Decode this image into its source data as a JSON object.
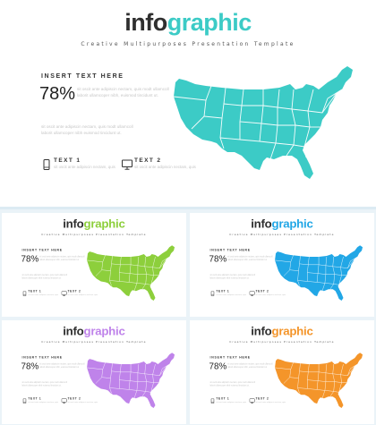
{
  "slides": [
    {
      "accent": "#3ccbc6",
      "title_a": "info",
      "title_b": "graphic"
    },
    {
      "accent": "#8dcf3c",
      "title_a": "info",
      "title_b": "graphic"
    },
    {
      "accent": "#22a7e6",
      "title_a": "info",
      "title_b": "graphic"
    },
    {
      "accent": "#bf83ea",
      "title_a": "info",
      "title_b": "graphic"
    },
    {
      "accent": "#f4952a",
      "title_a": "info",
      "title_b": "graphic"
    }
  ],
  "subtitle": "Creative Multipurposes Presentation Template",
  "heading": "INSERT TEXT HERE",
  "percent": "78%",
  "body": "sit oscit ante adipiscin nectam, quis modt ullamcoll laborit ullamcoper nibh, euismod tincidunt ut.",
  "body2": "sit oscit ante adipiscin nectam, quis modt ullamcoll laborit ullamcoper nibh euismod tincidunt ut.",
  "features": [
    {
      "label": "TEXT 1",
      "text": "sit oscit ante adipiscin nectam, quis",
      "icon": "phone-icon"
    },
    {
      "label": "TEXT 2",
      "text": "sit oscit ante adipiscin nectam, quis",
      "icon": "monitor-icon"
    }
  ],
  "map_label": "us-map"
}
